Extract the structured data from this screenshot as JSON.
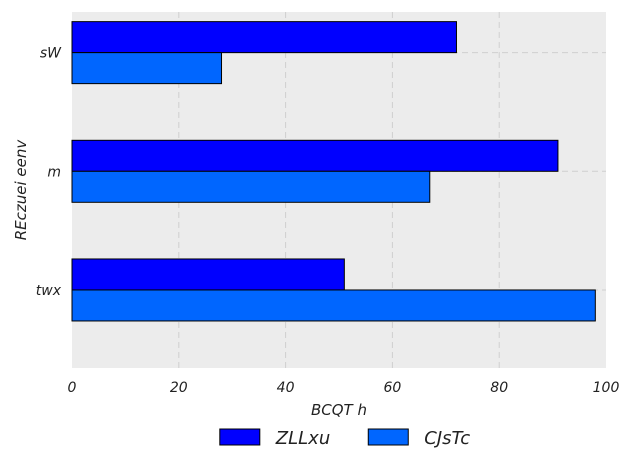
{
  "chart_data": {
    "type": "bar",
    "orientation": "horizontal",
    "categories": [
      "sW",
      "m",
      "twx"
    ],
    "series": [
      {
        "name": "ZLLxu",
        "values": [
          72,
          91,
          51
        ],
        "color": "#0000ff"
      },
      {
        "name": "CJsTc",
        "values": [
          28,
          67,
          98
        ],
        "color": "#0066ff"
      }
    ],
    "xlabel": "BCQT h",
    "ylabel": "REczuei eenv",
    "xlim": [
      0,
      100
    ],
    "xticks": [
      0,
      20,
      40,
      60,
      80,
      100
    ],
    "grid": true,
    "legend_position": "bottom-center",
    "background": "#ececec"
  }
}
